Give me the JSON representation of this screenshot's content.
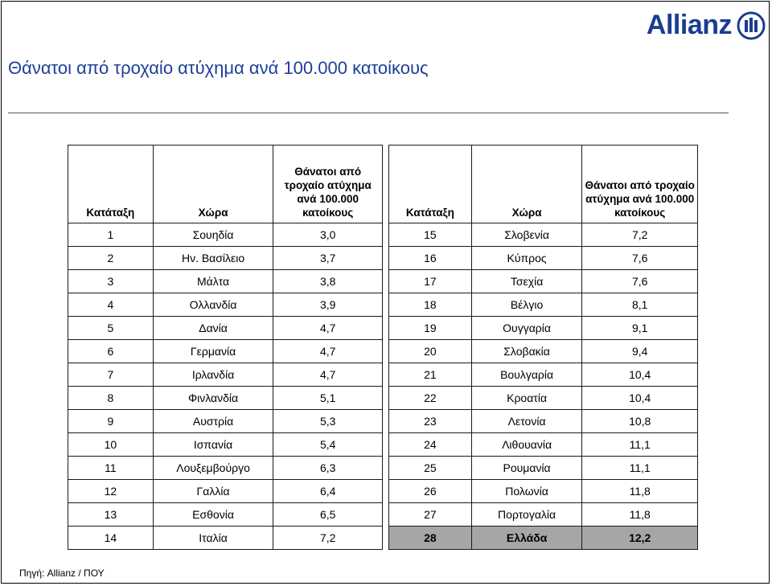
{
  "brand": {
    "name": "Allianz",
    "color": "#1b3c8f"
  },
  "title": "Θάνατοι από τροχαίο ατύχημα ανά 100.000 κατοίκους",
  "source": "Πηγή: Allianz / ΠΟΥ",
  "columns": {
    "rank": "Κατάταξη",
    "country": "Χώρα",
    "deaths": "Θάνατοι από τροχαίο ατύχημα ανά 100.000 κατοίκους"
  },
  "highlight_color": "#a6a6a6",
  "left_rows": [
    {
      "rank": "1",
      "country": "Σουηδία",
      "value": "3,0"
    },
    {
      "rank": "2",
      "country": "Ην. Βασίλειο",
      "value": "3,7"
    },
    {
      "rank": "3",
      "country": "Μάλτα",
      "value": "3,8"
    },
    {
      "rank": "4",
      "country": "Ολλανδία",
      "value": "3,9"
    },
    {
      "rank": "5",
      "country": "Δανία",
      "value": "4,7"
    },
    {
      "rank": "6",
      "country": "Γερμανία",
      "value": "4,7"
    },
    {
      "rank": "7",
      "country": "Ιρλανδία",
      "value": "4,7"
    },
    {
      "rank": "8",
      "country": "Φινλανδία",
      "value": "5,1"
    },
    {
      "rank": "9",
      "country": "Αυστρία",
      "value": "5,3"
    },
    {
      "rank": "10",
      "country": "Ισπανία",
      "value": "5,4"
    },
    {
      "rank": "11",
      "country": "Λουξεμβούργο",
      "value": "6,3"
    },
    {
      "rank": "12",
      "country": "Γαλλία",
      "value": "6,4"
    },
    {
      "rank": "13",
      "country": "Εσθονία",
      "value": "6,5"
    },
    {
      "rank": "14",
      "country": "Ιταλία",
      "value": "7,2"
    }
  ],
  "right_rows": [
    {
      "rank": "15",
      "country": "Σλοβενία",
      "value": "7,2"
    },
    {
      "rank": "16",
      "country": "Κύπρος",
      "value": "7,6"
    },
    {
      "rank": "17",
      "country": "Τσεχία",
      "value": "7,6"
    },
    {
      "rank": "18",
      "country": "Βέλγιο",
      "value": "8,1"
    },
    {
      "rank": "19",
      "country": "Ουγγαρία",
      "value": "9,1"
    },
    {
      "rank": "20",
      "country": "Σλοβακία",
      "value": "9,4"
    },
    {
      "rank": "21",
      "country": "Βουλγαρία",
      "value": "10,4"
    },
    {
      "rank": "22",
      "country": "Κροατία",
      "value": "10,4"
    },
    {
      "rank": "23",
      "country": "Λετονία",
      "value": "10,8"
    },
    {
      "rank": "24",
      "country": "Λιθουανία",
      "value": "11,1"
    },
    {
      "rank": "25",
      "country": "Ρουμανία",
      "value": "11,1"
    },
    {
      "rank": "26",
      "country": "Πολωνία",
      "value": "11,8"
    },
    {
      "rank": "27",
      "country": "Πορτογαλία",
      "value": "11,8"
    },
    {
      "rank": "28",
      "country": "Ελλάδα",
      "value": "12,2",
      "highlight": true
    }
  ]
}
